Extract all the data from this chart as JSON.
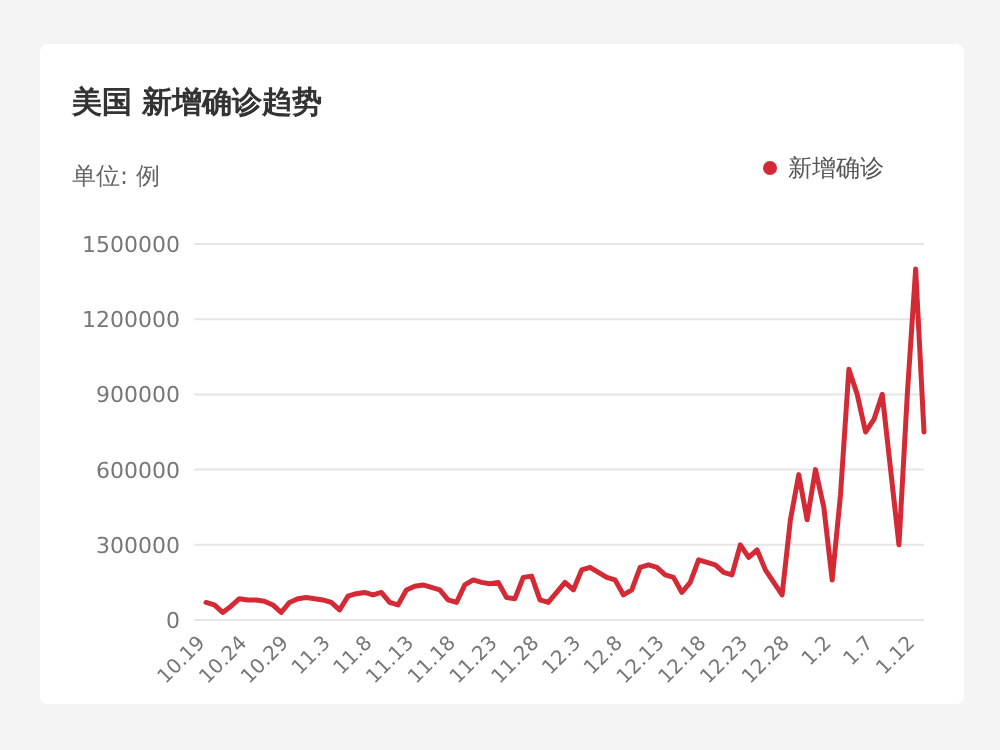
{
  "chart_data": {
    "type": "line",
    "title": "美国 新增确诊趋势",
    "ylabel": "单位: 例",
    "categories": [
      "10.19",
      null,
      null,
      null,
      null,
      "10.24",
      null,
      null,
      null,
      null,
      "10.29",
      null,
      null,
      null,
      null,
      "11.3",
      null,
      null,
      null,
      null,
      "11.8",
      null,
      null,
      null,
      null,
      "11.13",
      null,
      null,
      null,
      null,
      "11.18",
      null,
      null,
      null,
      null,
      "11.23",
      null,
      null,
      null,
      null,
      "11.28",
      null,
      null,
      null,
      null,
      "12.3",
      null,
      null,
      null,
      null,
      "12.8",
      null,
      null,
      null,
      null,
      "12.13",
      null,
      null,
      null,
      null,
      "12.18",
      null,
      null,
      null,
      null,
      "12.23",
      null,
      null,
      null,
      null,
      "12.28",
      null,
      null,
      null,
      null,
      "1.2",
      null,
      null,
      null,
      null,
      "1.7",
      null,
      null,
      null,
      null,
      "1.12",
      null
    ],
    "series": [
      {
        "name": "新增确诊",
        "color": "#d42a36",
        "values": [
          70000,
          60000,
          30000,
          55000,
          85000,
          80000,
          80000,
          75000,
          60000,
          30000,
          70000,
          85000,
          90000,
          85000,
          80000,
          70000,
          40000,
          95000,
          105000,
          110000,
          100000,
          110000,
          70000,
          60000,
          120000,
          135000,
          140000,
          130000,
          120000,
          80000,
          70000,
          140000,
          160000,
          150000,
          145000,
          150000,
          90000,
          85000,
          170000,
          175000,
          80000,
          70000,
          110000,
          150000,
          120000,
          200000,
          210000,
          190000,
          170000,
          160000,
          100000,
          120000,
          210000,
          220000,
          210000,
          180000,
          170000,
          110000,
          150000,
          240000,
          230000,
          220000,
          190000,
          180000,
          300000,
          250000,
          280000,
          200000,
          150000,
          100000,
          400000,
          580000,
          400000,
          600000,
          450000,
          160000,
          500000,
          1000000,
          900000,
          750000,
          800000,
          900000,
          600000,
          300000,
          900000,
          1400000,
          750000
        ]
      }
    ],
    "ylim": [
      0,
      1500000
    ],
    "yticks": [
      0,
      300000,
      600000,
      900000,
      1200000,
      1500000
    ],
    "grid": "y",
    "legend": "top right",
    "marker": "none",
    "line_style": "solid"
  }
}
